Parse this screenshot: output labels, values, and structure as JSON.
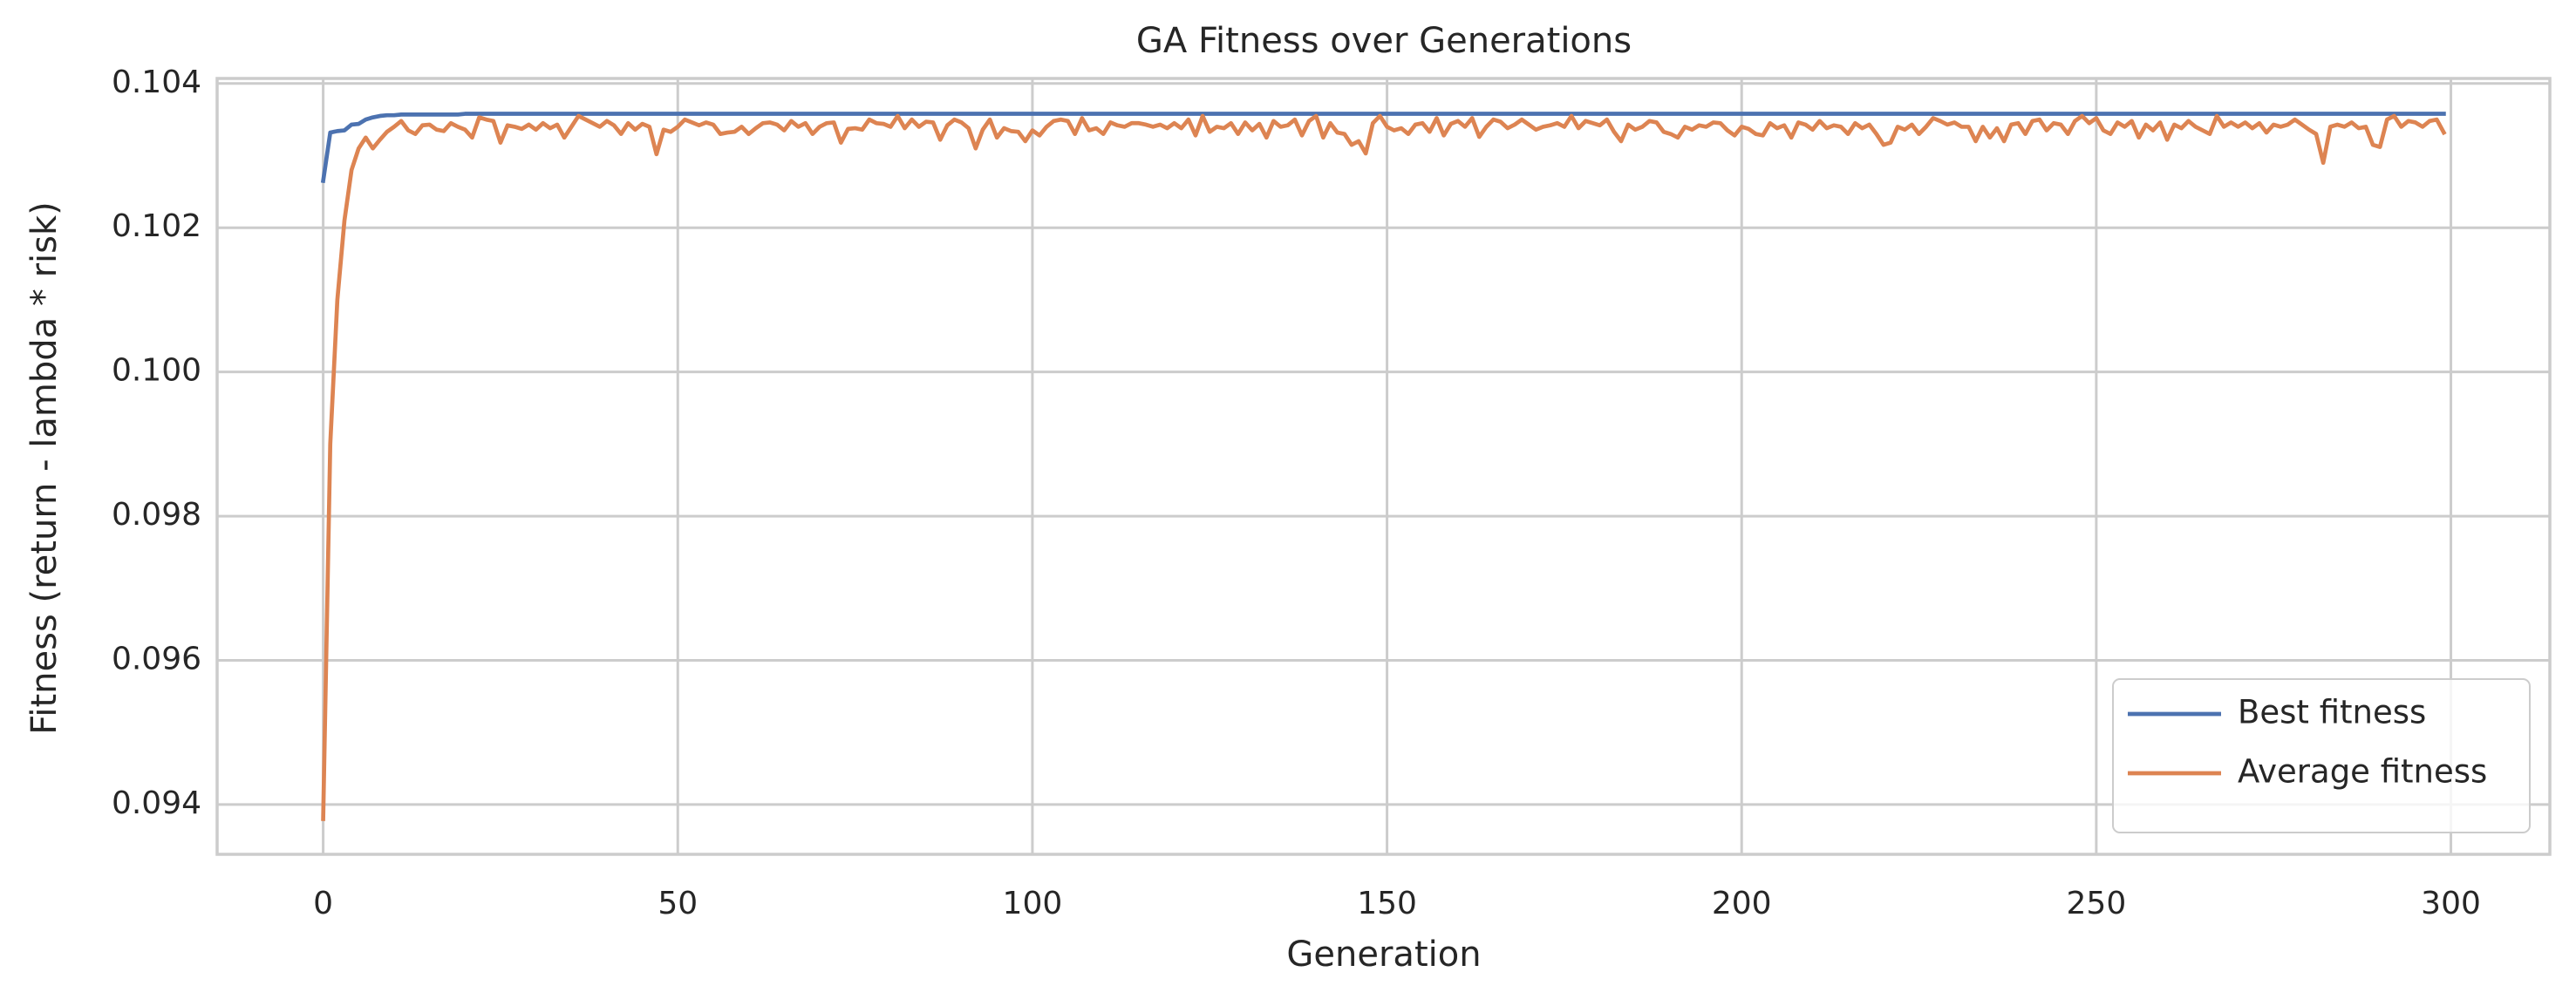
{
  "chart_data": {
    "type": "line",
    "title": "GA Fitness over Generations",
    "x_label": "Generation",
    "y_label": "Fitness (return - lambda * risk)",
    "grid": true,
    "legend": "lower right",
    "xlim": [
      -14.95,
      313.95
    ],
    "xticks": [
      0,
      50,
      100,
      150,
      200,
      250,
      300
    ],
    "ylim": [
      0.09331,
      0.10407
    ],
    "yticks": [
      0.094,
      0.096,
      0.098,
      {
        "value": 0.1,
        "label": "0.100"
      },
      0.102,
      0.104
    ],
    "x": [
      0,
      1,
      2,
      3,
      4,
      5,
      6,
      7,
      8,
      9,
      10,
      11,
      12,
      13,
      14,
      15,
      16,
      17,
      18,
      19,
      20,
      21,
      22,
      23,
      24,
      25,
      26,
      27,
      28,
      29,
      30,
      31,
      32,
      33,
      34,
      35,
      36,
      37,
      38,
      39,
      40,
      41,
      42,
      43,
      44,
      45,
      46,
      47,
      48,
      49,
      50,
      51,
      52,
      53,
      54,
      55,
      56,
      57,
      58,
      59,
      60,
      61,
      62,
      63,
      64,
      65,
      66,
      67,
      68,
      69,
      70,
      71,
      72,
      73,
      74,
      75,
      76,
      77,
      78,
      79,
      80,
      81,
      82,
      83,
      84,
      85,
      86,
      87,
      88,
      89,
      90,
      91,
      92,
      93,
      94,
      95,
      96,
      97,
      98,
      99,
      100,
      101,
      102,
      103,
      104,
      105,
      106,
      107,
      108,
      109,
      110,
      111,
      112,
      113,
      114,
      115,
      116,
      117,
      118,
      119,
      120,
      121,
      122,
      123,
      124,
      125,
      126,
      127,
      128,
      129,
      130,
      131,
      132,
      133,
      134,
      135,
      136,
      137,
      138,
      139,
      140,
      141,
      142,
      143,
      144,
      145,
      146,
      147,
      148,
      149,
      150,
      151,
      152,
      153,
      154,
      155,
      156,
      157,
      158,
      159,
      160,
      161,
      162,
      163,
      164,
      165,
      166,
      167,
      168,
      169,
      170,
      171,
      172,
      173,
      174,
      175,
      176,
      177,
      178,
      179,
      180,
      181,
      182,
      183,
      184,
      185,
      186,
      187,
      188,
      189,
      190,
      191,
      192,
      193,
      194,
      195,
      196,
      197,
      198,
      199,
      200,
      201,
      202,
      203,
      204,
      205,
      206,
      207,
      208,
      209,
      210,
      211,
      212,
      213,
      214,
      215,
      216,
      217,
      218,
      219,
      220,
      221,
      222,
      223,
      224,
      225,
      226,
      227,
      228,
      229,
      230,
      231,
      232,
      233,
      234,
      235,
      236,
      237,
      238,
      239,
      240,
      241,
      242,
      243,
      244,
      245,
      246,
      247,
      248,
      249,
      250,
      251,
      252,
      253,
      254,
      255,
      256,
      257,
      258,
      259,
      260,
      261,
      262,
      263,
      264,
      265,
      266,
      267,
      268,
      269,
      270,
      271,
      272,
      273,
      274,
      275,
      276,
      277,
      278,
      279,
      280,
      281,
      282,
      283,
      284,
      285,
      286,
      287,
      288,
      289,
      290,
      291,
      292,
      293,
      294,
      295,
      296,
      297,
      298,
      299
    ],
    "series": [
      {
        "name": "Best fitness",
        "color": "#4c72b0",
        "values": [
          0.10265,
          0.10332,
          0.10334,
          0.10335,
          0.10343,
          0.10344,
          0.1035,
          0.10353,
          0.10355,
          0.10356,
          0.10356,
          0.10357,
          0.10357,
          0.10357,
          0.10357,
          0.10357,
          0.10357,
          0.10357,
          0.10357,
          0.10357,
          0.10358,
          0.10358,
          0.10358,
          0.10358,
          0.10358,
          0.10358,
          0.10358,
          0.10358,
          0.10358,
          0.10358,
          0.10358,
          0.10358,
          0.10358,
          0.10358,
          0.10358,
          0.10358,
          0.10358,
          0.10358,
          0.10358,
          0.10358,
          0.10358,
          0.10358,
          0.10358,
          0.10358,
          0.10358,
          0.10358,
          0.10358,
          0.10358,
          0.10358,
          0.10358,
          0.10358,
          0.10358,
          0.10358,
          0.10358,
          0.10358,
          0.10358,
          0.10358,
          0.10358,
          0.10358,
          0.10358,
          0.10358,
          0.10358,
          0.10358,
          0.10358,
          0.10358,
          0.10358,
          0.10358,
          0.10358,
          0.10358,
          0.10358,
          0.10358,
          0.10358,
          0.10358,
          0.10358,
          0.10358,
          0.10358,
          0.10358,
          0.10358,
          0.10358,
          0.10358,
          0.10358,
          0.10358,
          0.10358,
          0.10358,
          0.10358,
          0.10358,
          0.10358,
          0.10358,
          0.10358,
          0.10358,
          0.10358,
          0.10358,
          0.10358,
          0.10358,
          0.10358,
          0.10358,
          0.10358,
          0.10358,
          0.10358,
          0.10358,
          0.10358,
          0.10358,
          0.10358,
          0.10358,
          0.10358,
          0.10358,
          0.10358,
          0.10358,
          0.10358,
          0.10358,
          0.10358,
          0.10358,
          0.10358,
          0.10358,
          0.10358,
          0.10358,
          0.10358,
          0.10358,
          0.10358,
          0.10358,
          0.10358,
          0.10358,
          0.10358,
          0.10358,
          0.10358,
          0.10358,
          0.10358,
          0.10358,
          0.10358,
          0.10358,
          0.10358,
          0.10358,
          0.10358,
          0.10358,
          0.10358,
          0.10358,
          0.10358,
          0.10358,
          0.10358,
          0.10358,
          0.10358,
          0.10358,
          0.10358,
          0.10358,
          0.10358,
          0.10358,
          0.10358,
          0.10358,
          0.10358,
          0.10358,
          0.10358,
          0.10358,
          0.10358,
          0.10358,
          0.10358,
          0.10358,
          0.10358,
          0.10358,
          0.10358,
          0.10358,
          0.10358,
          0.10358,
          0.10358,
          0.10358,
          0.10358,
          0.10358,
          0.10358,
          0.10358,
          0.10358,
          0.10358,
          0.10358,
          0.10358,
          0.10358,
          0.10358,
          0.10358,
          0.10358,
          0.10358,
          0.10358,
          0.10358,
          0.10358,
          0.10358,
          0.10358,
          0.10358,
          0.10358,
          0.10358,
          0.10358,
          0.10358,
          0.10358,
          0.10358,
          0.10358,
          0.10358,
          0.10358,
          0.10358,
          0.10358,
          0.10358,
          0.10358,
          0.10358,
          0.10358,
          0.10358,
          0.10358,
          0.10358,
          0.10358,
          0.10358,
          0.10358,
          0.10358,
          0.10358,
          0.10358,
          0.10358,
          0.10358,
          0.10358,
          0.10358,
          0.10358,
          0.10358,
          0.10358,
          0.10358,
          0.10358,
          0.10358,
          0.10358,
          0.10358,
          0.10358,
          0.10358,
          0.10358,
          0.10358,
          0.10358,
          0.10358,
          0.10358,
          0.10358,
          0.10358,
          0.10358,
          0.10358,
          0.10358,
          0.10358,
          0.10358,
          0.10358,
          0.10358,
          0.10358,
          0.10358,
          0.10358,
          0.10358,
          0.10358,
          0.10358,
          0.10358,
          0.10358,
          0.10358,
          0.10358,
          0.10358,
          0.10358,
          0.10358,
          0.10358,
          0.10358,
          0.10358,
          0.10358,
          0.10358,
          0.10358,
          0.10358,
          0.10358,
          0.10358,
          0.10358,
          0.10358,
          0.10358,
          0.10358,
          0.10358,
          0.10358,
          0.10358,
          0.10358,
          0.10358,
          0.10358,
          0.10358,
          0.10358,
          0.10358,
          0.10358,
          0.10358,
          0.10358,
          0.10358,
          0.10358,
          0.10358,
          0.10358,
          0.10358,
          0.10358,
          0.10358,
          0.10358,
          0.10358,
          0.10358,
          0.10358,
          0.10358,
          0.10358,
          0.10358,
          0.10358,
          0.10358,
          0.10358,
          0.10358,
          0.10358,
          0.10358,
          0.10358,
          0.10358,
          0.10358,
          0.10358,
          0.10358,
          0.10358,
          0.10358
        ]
      },
      {
        "name": "Average fitness",
        "color": "#dd8452",
        "values": [
          0.0938,
          0.099,
          0.101,
          0.1021,
          0.1028,
          0.1031,
          0.10325,
          0.1031,
          0.10322,
          0.10333,
          0.1034,
          0.10348,
          0.10335,
          0.1033,
          0.10342,
          0.10343,
          0.10336,
          0.10334,
          0.10345,
          0.1034,
          0.10336,
          0.10325,
          0.10353,
          0.1035,
          0.10348,
          0.10318,
          0.10342,
          0.1034,
          0.10337,
          0.10343,
          0.10336,
          0.10345,
          0.10338,
          0.10343,
          0.10325,
          0.1034,
          0.10355,
          0.1035,
          0.10345,
          0.1034,
          0.10348,
          0.10342,
          0.1033,
          0.10345,
          0.10336,
          0.10344,
          0.1034,
          0.10302,
          0.10336,
          0.10333,
          0.1034,
          0.1035,
          0.10346,
          0.10342,
          0.10346,
          0.10343,
          0.1033,
          0.10332,
          0.10333,
          0.1034,
          0.1033,
          0.10338,
          0.10345,
          0.10346,
          0.10343,
          0.10335,
          0.10348,
          0.1034,
          0.10345,
          0.1033,
          0.1034,
          0.10345,
          0.10346,
          0.10318,
          0.10337,
          0.10338,
          0.10336,
          0.1035,
          0.10345,
          0.10344,
          0.1034,
          0.10355,
          0.10338,
          0.1035,
          0.1034,
          0.10347,
          0.10346,
          0.10322,
          0.10342,
          0.1035,
          0.10346,
          0.10338,
          0.1031,
          0.10336,
          0.1035,
          0.10325,
          0.10338,
          0.10334,
          0.10333,
          0.1032,
          0.10335,
          0.10328,
          0.1034,
          0.10348,
          0.1035,
          0.10348,
          0.1033,
          0.10352,
          0.10335,
          0.10338,
          0.1033,
          0.10346,
          0.10342,
          0.1034,
          0.10345,
          0.10345,
          0.10343,
          0.1034,
          0.10343,
          0.10338,
          0.10345,
          0.10338,
          0.1035,
          0.10328,
          0.10355,
          0.10333,
          0.1034,
          0.10338,
          0.10345,
          0.1033,
          0.10346,
          0.10335,
          0.10344,
          0.10325,
          0.10348,
          0.1034,
          0.10342,
          0.1035,
          0.10328,
          0.10348,
          0.10355,
          0.10325,
          0.10345,
          0.10332,
          0.1033,
          0.10315,
          0.1032,
          0.10303,
          0.10345,
          0.10355,
          0.1034,
          0.10335,
          0.10338,
          0.1033,
          0.10343,
          0.10345,
          0.10333,
          0.10352,
          0.10328,
          0.10344,
          0.10348,
          0.1034,
          0.10352,
          0.10326,
          0.1034,
          0.1035,
          0.10347,
          0.10338,
          0.10343,
          0.1035,
          0.10343,
          0.10336,
          0.1034,
          0.10342,
          0.10345,
          0.1034,
          0.10355,
          0.10338,
          0.10348,
          0.10345,
          0.10342,
          0.1035,
          0.10333,
          0.1032,
          0.10343,
          0.10336,
          0.1034,
          0.10348,
          0.10346,
          0.10333,
          0.1033,
          0.10325,
          0.1034,
          0.10336,
          0.10342,
          0.1034,
          0.10346,
          0.10345,
          0.10335,
          0.10328,
          0.1034,
          0.10337,
          0.1033,
          0.10328,
          0.10345,
          0.10338,
          0.10342,
          0.10325,
          0.10346,
          0.10343,
          0.10336,
          0.10348,
          0.10338,
          0.10342,
          0.1034,
          0.1033,
          0.10345,
          0.10338,
          0.10343,
          0.1033,
          0.10315,
          0.10318,
          0.1034,
          0.10336,
          0.10343,
          0.1033,
          0.1034,
          0.10352,
          0.10348,
          0.10343,
          0.10346,
          0.1034,
          0.1034,
          0.1032,
          0.1034,
          0.10325,
          0.10338,
          0.1032,
          0.10343,
          0.10345,
          0.1033,
          0.10348,
          0.1035,
          0.10335,
          0.10345,
          0.10343,
          0.1033,
          0.10348,
          0.10355,
          0.10345,
          0.10352,
          0.10335,
          0.1033,
          0.10346,
          0.1034,
          0.10348,
          0.10325,
          0.10343,
          0.10335,
          0.10346,
          0.10322,
          0.10343,
          0.10338,
          0.10348,
          0.1034,
          0.10335,
          0.1033,
          0.10355,
          0.1034,
          0.10346,
          0.1034,
          0.10346,
          0.10338,
          0.10345,
          0.10332,
          0.10343,
          0.1034,
          0.10343,
          0.1035,
          0.10343,
          0.10336,
          0.1033,
          0.1029,
          0.1034,
          0.10343,
          0.1034,
          0.10346,
          0.10338,
          0.1034,
          0.10315,
          0.10312,
          0.1035,
          0.10355,
          0.1034,
          0.10348,
          0.10346,
          0.1034,
          0.10348,
          0.1035,
          0.10332
        ]
      }
    ]
  }
}
